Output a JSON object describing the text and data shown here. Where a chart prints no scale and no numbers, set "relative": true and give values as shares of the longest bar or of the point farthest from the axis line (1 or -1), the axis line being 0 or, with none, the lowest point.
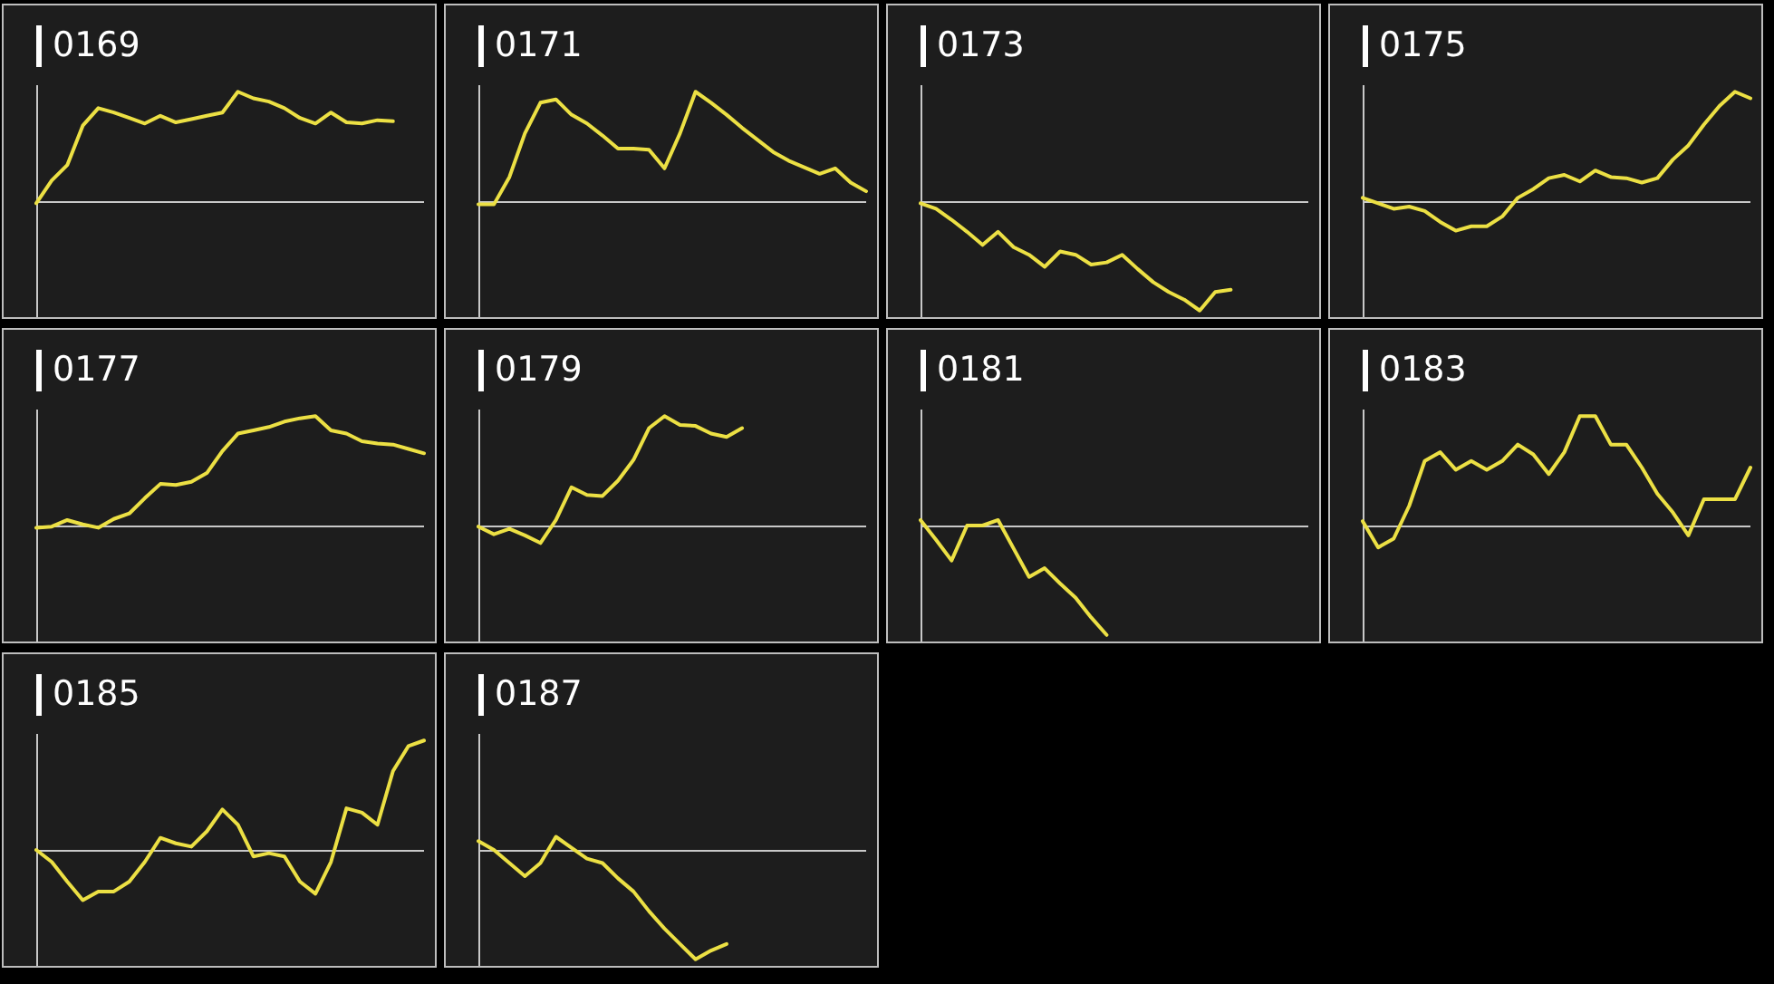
{
  "chart_data": [
    {
      "type": "line",
      "title": "0169",
      "relative": true,
      "color": "#ece044",
      "categories": [
        null,
        null,
        null,
        null,
        null,
        null,
        null,
        null,
        null,
        null,
        null,
        null,
        null,
        null,
        null,
        null,
        null,
        null,
        null,
        null,
        null,
        null,
        null,
        null,
        null,
        null
      ],
      "values": [
        -0.02,
        0.19,
        0.33,
        0.69,
        0.85,
        0.81,
        0.76,
        0.71,
        0.78,
        0.72,
        0.75,
        0.78,
        0.81,
        1.0,
        0.94,
        0.91,
        0.85,
        0.76,
        0.71,
        0.81,
        0.72,
        0.71,
        0.74,
        0.73,
        null,
        null
      ]
    },
    {
      "type": "line",
      "title": "0171",
      "relative": true,
      "color": "#ece044",
      "categories": [
        null,
        null,
        null,
        null,
        null,
        null,
        null,
        null,
        null,
        null,
        null,
        null,
        null,
        null,
        null,
        null,
        null,
        null,
        null,
        null,
        null,
        null,
        null,
        null,
        null,
        null
      ],
      "values": [
        -0.03,
        -0.03,
        0.22,
        0.62,
        0.9,
        0.93,
        0.79,
        0.71,
        0.6,
        0.48,
        0.48,
        0.47,
        0.3,
        0.62,
        1.0,
        0.9,
        0.79,
        0.67,
        0.56,
        0.45,
        0.37,
        0.31,
        0.25,
        0.3,
        0.17,
        0.09
      ]
    },
    {
      "type": "line",
      "title": "0173",
      "relative": true,
      "color": "#ece044",
      "categories": [
        null,
        null,
        null,
        null,
        null,
        null,
        null,
        null,
        null,
        null,
        null,
        null,
        null,
        null,
        null,
        null,
        null,
        null,
        null,
        null,
        null,
        null,
        null,
        null,
        null,
        null
      ],
      "values": [
        -0.02,
        -0.07,
        -0.17,
        -0.28,
        -0.4,
        -0.28,
        -0.42,
        -0.49,
        -0.6,
        -0.46,
        -0.49,
        -0.58,
        -0.56,
        -0.49,
        -0.62,
        -0.74,
        -0.83,
        -0.9,
        -1.0,
        -0.83,
        -0.81,
        null,
        null,
        null,
        null,
        null
      ]
    },
    {
      "type": "line",
      "title": "0175",
      "relative": true,
      "color": "#ece044",
      "categories": [
        null,
        null,
        null,
        null,
        null,
        null,
        null,
        null,
        null,
        null,
        null,
        null,
        null,
        null,
        null,
        null,
        null,
        null,
        null,
        null,
        null,
        null,
        null,
        null,
        null,
        null
      ],
      "values": [
        0.03,
        -0.02,
        -0.07,
        -0.05,
        -0.09,
        -0.19,
        -0.27,
        -0.23,
        -0.23,
        -0.14,
        0.03,
        0.11,
        0.21,
        0.24,
        0.18,
        0.28,
        0.22,
        0.21,
        0.17,
        0.21,
        0.38,
        0.51,
        0.7,
        0.87,
        1.0,
        0.94
      ]
    },
    {
      "type": "line",
      "title": "0177",
      "relative": true,
      "color": "#ece044",
      "categories": [
        null,
        null,
        null,
        null,
        null,
        null,
        null,
        null,
        null,
        null,
        null,
        null,
        null,
        null,
        null,
        null,
        null,
        null,
        null,
        null,
        null,
        null,
        null,
        null,
        null,
        null
      ],
      "values": [
        -0.02,
        -0.01,
        0.05,
        0.01,
        -0.02,
        0.06,
        0.11,
        0.25,
        0.38,
        0.37,
        0.4,
        0.48,
        0.68,
        0.84,
        0.87,
        0.9,
        0.95,
        0.98,
        1.0,
        0.87,
        0.84,
        0.77,
        0.75,
        0.74,
        0.7,
        0.66
      ]
    },
    {
      "type": "line",
      "title": "0179",
      "relative": true,
      "color": "#ece044",
      "categories": [
        null,
        null,
        null,
        null,
        null,
        null,
        null,
        null,
        null,
        null,
        null,
        null,
        null,
        null,
        null,
        null,
        null,
        null,
        null,
        null,
        null,
        null,
        null,
        null,
        null,
        null
      ],
      "values": [
        -0.01,
        -0.08,
        -0.03,
        -0.09,
        -0.16,
        0.05,
        0.35,
        0.28,
        0.27,
        0.41,
        0.6,
        0.89,
        1.0,
        0.92,
        0.91,
        0.84,
        0.81,
        0.89,
        null,
        null,
        null,
        null,
        null,
        null,
        null,
        null
      ]
    },
    {
      "type": "line",
      "title": "0181",
      "relative": true,
      "color": "#ece044",
      "categories": [
        null,
        null,
        null,
        null,
        null,
        null,
        null,
        null,
        null,
        null,
        null,
        null,
        null,
        null,
        null,
        null,
        null,
        null,
        null,
        null,
        null,
        null,
        null,
        null,
        null,
        null
      ],
      "values": [
        0.05,
        -0.13,
        -0.32,
        0,
        0,
        0.05,
        -0.21,
        -0.47,
        -0.39,
        -0.53,
        -0.66,
        -0.84,
        -1.0,
        null,
        null,
        null,
        null,
        null,
        null,
        null,
        null,
        null,
        null,
        null,
        null,
        null
      ]
    },
    {
      "type": "line",
      "title": "0183",
      "relative": true,
      "color": "#ece044",
      "categories": [
        null,
        null,
        null,
        null,
        null,
        null,
        null,
        null,
        null,
        null,
        null,
        null,
        null,
        null,
        null,
        null,
        null,
        null,
        null,
        null,
        null,
        null,
        null,
        null,
        null,
        null
      ],
      "values": [
        0.04,
        -0.2,
        -0.12,
        0.18,
        0.59,
        0.67,
        0.51,
        0.59,
        0.51,
        0.59,
        0.74,
        0.65,
        0.47,
        0.67,
        1.0,
        1.0,
        0.74,
        0.74,
        0.53,
        0.29,
        0.12,
        -0.09,
        0.24,
        0.24,
        0.24,
        0.53
      ]
    },
    {
      "type": "line",
      "title": "0185",
      "relative": true,
      "color": "#ece044",
      "categories": [
        null,
        null,
        null,
        null,
        null,
        null,
        null,
        null,
        null,
        null,
        null,
        null,
        null,
        null,
        null,
        null,
        null,
        null,
        null,
        null,
        null,
        null,
        null,
        null,
        null,
        null
      ],
      "values": [
        0,
        -0.11,
        -0.29,
        -0.46,
        -0.38,
        -0.38,
        -0.29,
        -0.11,
        0.11,
        0.06,
        0.03,
        0.17,
        0.37,
        0.23,
        -0.06,
        -0.03,
        -0.06,
        -0.29,
        -0.4,
        -0.11,
        0.38,
        0.34,
        0.23,
        0.72,
        0.95,
        1.0
      ]
    },
    {
      "type": "line",
      "title": "0187",
      "relative": true,
      "color": "#ece044",
      "categories": [
        null,
        null,
        null,
        null,
        null,
        null,
        null,
        null,
        null,
        null,
        null,
        null,
        null,
        null,
        null,
        null,
        null,
        null,
        null,
        null,
        null,
        null,
        null,
        null,
        null,
        null
      ],
      "values": [
        0.08,
        0,
        -0.12,
        -0.24,
        -0.12,
        0.12,
        0.02,
        -0.08,
        -0.12,
        -0.26,
        -0.38,
        -0.56,
        -0.72,
        -0.86,
        -1.0,
        -0.92,
        -0.86,
        null,
        null,
        null,
        null,
        null,
        null,
        null,
        null,
        null
      ]
    }
  ]
}
